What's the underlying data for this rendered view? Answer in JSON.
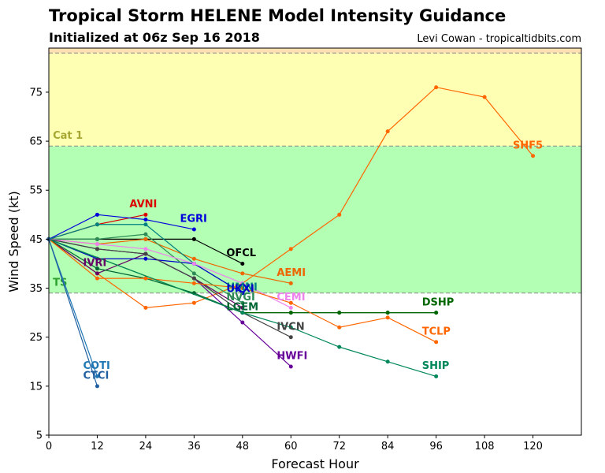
{
  "header": {
    "title": "Tropical Storm HELENE Model Intensity Guidance",
    "subtitle": "Initialized at 06z Sep 16 2018",
    "credit": "Levi Cowan - tropicaltidbits.com"
  },
  "chart_data": {
    "type": "line",
    "xlabel": "Forecast Hour",
    "ylabel": "Wind Speed (kt)",
    "xlim": [
      0,
      132
    ],
    "ylim": [
      5,
      84
    ],
    "xticks": [
      0,
      12,
      24,
      36,
      48,
      60,
      72,
      84,
      96,
      108,
      120
    ],
    "yticks": [
      5,
      15,
      25,
      35,
      45,
      55,
      65,
      75
    ],
    "grid": false,
    "bands": [
      {
        "label": "TS",
        "from": 34,
        "to": 64,
        "color": "#b3ffb3",
        "label_color": "#2ca02c",
        "label_y": 35.5
      },
      {
        "label": "Cat 1",
        "from": 64,
        "to": 83,
        "color": "#ffffb3",
        "label_color": "#a6a633",
        "label_y": 65.5
      },
      {
        "label": "",
        "from": 83,
        "to": 84,
        "color": "#ffe0b3",
        "label_color": "#000000",
        "label_y": 83
      }
    ],
    "thresholds": [
      34,
      64,
      83
    ],
    "series": [
      {
        "name": "SHF5",
        "color": "#ff6600",
        "x": [
          0,
          12,
          24,
          36,
          48,
          60,
          72,
          84,
          96,
          108,
          120
        ],
        "y": [
          45,
          38,
          31,
          32,
          36,
          43,
          50,
          67,
          76,
          74,
          62
        ],
        "label_x": 115,
        "label_y": 63.5
      },
      {
        "name": "AVNI",
        "color": "#dd0000",
        "x": [
          0,
          12,
          24
        ],
        "y": [
          45,
          48,
          50
        ],
        "label_x": 20,
        "label_y": 51.5
      },
      {
        "name": "EGRI",
        "color": "#0000dd",
        "x": [
          0,
          12,
          24,
          36
        ],
        "y": [
          45,
          50,
          49,
          47
        ],
        "label_x": 32.5,
        "label_y": 48.5
      },
      {
        "name": "OFCL",
        "color": "#000000",
        "x": [
          0,
          12,
          24,
          36,
          48
        ],
        "y": [
          45,
          45,
          45,
          45,
          40
        ],
        "label_x": 44,
        "label_y": 41.5
      },
      {
        "name": "AEMI",
        "color": "#ee6600",
        "x": [
          0,
          12,
          24,
          36,
          48,
          60
        ],
        "y": [
          45,
          44,
          45,
          41,
          38,
          36
        ],
        "label_x": 56.5,
        "label_y": 37.5
      },
      {
        "name": "IVRI",
        "color": "#660066",
        "x": [
          0,
          12,
          24,
          36,
          48
        ],
        "y": [
          45,
          38,
          42,
          37,
          31
        ],
        "label_x": 8.5,
        "label_y": 39.5
      },
      {
        "name": "HWFI",
        "color": "#660099",
        "x": [
          0,
          12,
          24,
          36,
          48,
          60
        ],
        "y": [
          45,
          43,
          42,
          37,
          28,
          19
        ],
        "label_x": 56.5,
        "label_y": 20.5
      },
      {
        "name": "HMNI",
        "color": "#008080",
        "x": [
          0,
          12,
          24,
          36,
          48
        ],
        "y": [
          45,
          48,
          48,
          40,
          34
        ],
        "label_x": 44,
        "label_y": 34.5
      },
      {
        "name": "UKXI",
        "color": "#0000cc",
        "x": [
          0,
          12,
          24,
          36,
          48
        ],
        "y": [
          45,
          41,
          41,
          40,
          34
        ],
        "label_x": 44,
        "label_y": 34.2
      },
      {
        "name": "LGEM",
        "color": "#006633",
        "x": [
          0,
          12,
          24,
          36,
          48,
          60,
          72,
          84,
          96
        ],
        "y": [
          45,
          39,
          37,
          34,
          30,
          30,
          30,
          30,
          30
        ],
        "label_x": 44,
        "label_y": 30.5
      },
      {
        "name": "DSHP",
        "color": "#006600",
        "x": [
          0,
          48,
          60,
          72,
          84,
          96
        ],
        "y": [
          45,
          30,
          30,
          30,
          30,
          30
        ],
        "label_x": 92.5,
        "label_y": 31.5
      },
      {
        "name": "NVGI",
        "color": "#2e8b57",
        "x": [
          0,
          12,
          24,
          36,
          48
        ],
        "y": [
          45,
          45,
          46,
          38,
          32
        ],
        "label_x": 44,
        "label_y": 32.5
      },
      {
        "name": "CEMI",
        "color": "#ee82ee",
        "x": [
          0,
          12,
          24,
          36,
          48,
          60
        ],
        "y": [
          45,
          44,
          43,
          40,
          36,
          31
        ],
        "label_x": 56.5,
        "label_y": 32.5
      },
      {
        "name": "IVCN",
        "color": "#444444",
        "x": [
          0,
          12,
          24,
          36,
          48,
          60
        ],
        "y": [
          45,
          43,
          42,
          37,
          30,
          25
        ],
        "label_x": 56.5,
        "label_y": 26.5
      },
      {
        "name": "TCLP",
        "color": "#ff6600",
        "x": [
          0,
          12,
          24,
          36,
          48,
          60,
          72,
          84,
          96
        ],
        "y": [
          45,
          37,
          37,
          36,
          35,
          32,
          27,
          29,
          24
        ],
        "label_x": 92.5,
        "label_y": 25.5
      },
      {
        "name": "SHIP",
        "color": "#00875a",
        "x": [
          0,
          48,
          60,
          72,
          84,
          96
        ],
        "y": [
          45,
          30,
          27,
          23,
          20,
          17
        ],
        "label_x": 92.5,
        "label_y": 18.5
      },
      {
        "name": "COTI",
        "color": "#1f77b4",
        "x": [
          0,
          12
        ],
        "y": [
          45,
          17
        ],
        "label_x": 8.5,
        "label_y": 18.5
      },
      {
        "name": "CTCI",
        "color": "#1f5fa0",
        "x": [
          0,
          12
        ],
        "y": [
          45,
          15
        ],
        "label_x": 8.5,
        "label_y": 16.5
      }
    ]
  }
}
